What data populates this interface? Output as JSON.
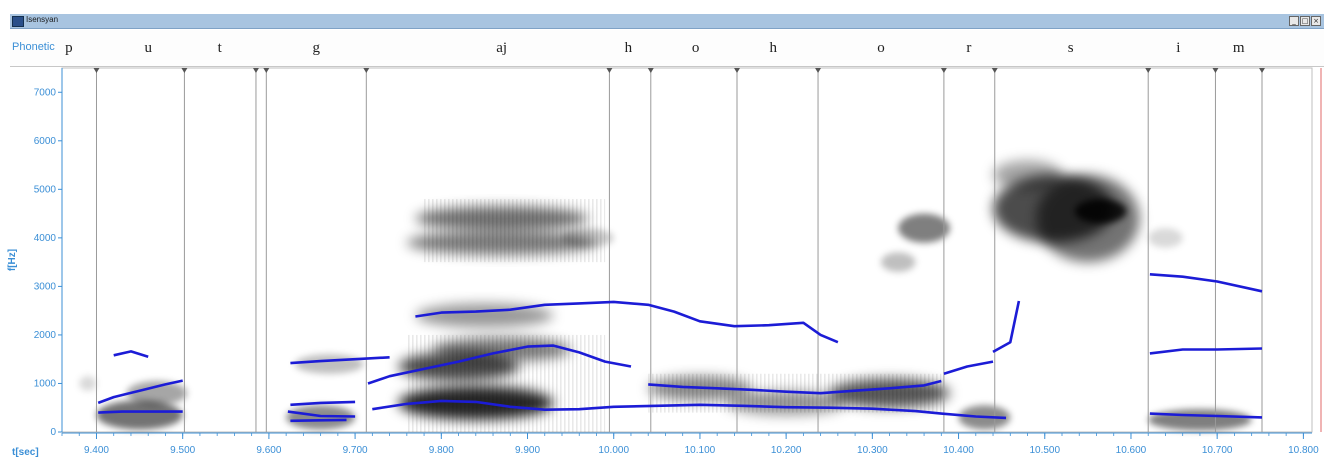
{
  "window": {
    "title": "Isensyan"
  },
  "tier": {
    "label": "Phonetic",
    "segments": [
      {
        "label": "p",
        "t": 9.368
      },
      {
        "label": "u",
        "t": 9.46
      },
      {
        "label": "t",
        "t": 9.543
      },
      {
        "label": "g",
        "t": 9.655
      },
      {
        "label": "aj",
        "t": 9.87
      },
      {
        "label": "h",
        "t": 10.017
      },
      {
        "label": "o",
        "t": 10.095
      },
      {
        "label": "h",
        "t": 10.185
      },
      {
        "label": "o",
        "t": 10.31
      },
      {
        "label": "r",
        "t": 10.412
      },
      {
        "label": "s",
        "t": 10.53
      },
      {
        "label": "i",
        "t": 10.655
      },
      {
        "label": "m",
        "t": 10.725
      }
    ],
    "boundaries": [
      9.4,
      9.502,
      9.585,
      9.597,
      9.713,
      9.995,
      10.043,
      10.143,
      10.237,
      10.383,
      10.442,
      10.62,
      10.698,
      10.752
    ]
  },
  "axes": {
    "y_label": "f[Hz]",
    "x_label": "t[sec]",
    "y_ticks": [
      "0",
      "1000",
      "2000",
      "3000",
      "4000",
      "5000",
      "6000",
      "7000"
    ],
    "x_ticks": [
      "9.400",
      "9.500",
      "9.600",
      "9.700",
      "9.800",
      "9.900",
      "10.000",
      "10.100",
      "10.200",
      "10.300",
      "10.400",
      "10.500",
      "10.600",
      "10.700",
      "10.800"
    ]
  },
  "colors": {
    "axis_text": "#3b8fd6",
    "formant": "#1c1cd6",
    "boundary": "#9a9a9a"
  },
  "chart_data": {
    "type": "spectrogram",
    "xlim": [
      9.36,
      10.81
    ],
    "ylim": [
      0,
      7500
    ],
    "formants": [
      {
        "name": "F1",
        "segments": [
          [
            [
              9.402,
              400
            ],
            [
              9.43,
              420
            ],
            [
              9.46,
              420
            ],
            [
              9.5,
              420
            ]
          ],
          [
            [
              9.625,
              230
            ],
            [
              9.65,
              240
            ],
            [
              9.69,
              250
            ]
          ],
          [
            [
              9.72,
              470
            ],
            [
              9.76,
              580
            ],
            [
              9.8,
              640
            ],
            [
              9.84,
              620
            ],
            [
              9.88,
              520
            ],
            [
              9.92,
              460
            ],
            [
              9.96,
              470
            ],
            [
              10.0,
              520
            ],
            [
              10.05,
              540
            ],
            [
              10.1,
              560
            ],
            [
              10.15,
              540
            ],
            [
              10.2,
              510
            ],
            [
              10.25,
              500
            ],
            [
              10.3,
              480
            ],
            [
              10.35,
              430
            ],
            [
              10.38,
              380
            ],
            [
              10.42,
              320
            ],
            [
              10.455,
              290
            ]
          ],
          [
            [
              9.622,
              420
            ],
            [
              9.66,
              330
            ],
            [
              9.7,
              320
            ]
          ],
          [
            [
              10.622,
              380
            ],
            [
              10.66,
              350
            ],
            [
              10.7,
              330
            ],
            [
              10.752,
              300
            ]
          ]
        ]
      },
      {
        "name": "F2",
        "segments": [
          [
            [
              9.402,
              600
            ],
            [
              9.42,
              720
            ],
            [
              9.45,
              850
            ],
            [
              9.48,
              980
            ],
            [
              9.5,
              1060
            ]
          ],
          [
            [
              9.625,
              560
            ],
            [
              9.66,
              600
            ],
            [
              9.7,
              620
            ]
          ],
          [
            [
              9.715,
              1000
            ],
            [
              9.74,
              1150
            ],
            [
              9.78,
              1300
            ],
            [
              9.82,
              1450
            ],
            [
              9.86,
              1620
            ],
            [
              9.9,
              1760
            ],
            [
              9.93,
              1780
            ],
            [
              9.96,
              1640
            ],
            [
              9.99,
              1450
            ],
            [
              10.02,
              1350
            ]
          ],
          [
            [
              10.04,
              980
            ],
            [
              10.08,
              930
            ],
            [
              10.12,
              900
            ],
            [
              10.16,
              870
            ],
            [
              10.2,
              830
            ],
            [
              10.24,
              800
            ],
            [
              10.28,
              850
            ],
            [
              10.32,
              900
            ],
            [
              10.36,
              960
            ],
            [
              10.38,
              1050
            ]
          ],
          [
            [
              10.383,
              1200
            ],
            [
              10.41,
              1350
            ],
            [
              10.44,
              1450
            ]
          ],
          [
            [
              10.622,
              1620
            ],
            [
              10.66,
              1700
            ],
            [
              10.7,
              1700
            ],
            [
              10.752,
              1720
            ]
          ]
        ]
      },
      {
        "name": "F3",
        "segments": [
          [
            [
              9.42,
              1580
            ],
            [
              9.44,
              1660
            ],
            [
              9.46,
              1550
            ]
          ],
          [
            [
              9.625,
              1420
            ],
            [
              9.66,
              1460
            ],
            [
              9.7,
              1500
            ],
            [
              9.74,
              1540
            ]
          ],
          [
            [
              9.77,
              2380
            ],
            [
              9.8,
              2460
            ],
            [
              9.84,
              2480
            ],
            [
              9.88,
              2520
            ],
            [
              9.92,
              2620
            ],
            [
              9.96,
              2650
            ],
            [
              10.0,
              2680
            ],
            [
              10.04,
              2620
            ],
            [
              10.07,
              2480
            ],
            [
              10.1,
              2280
            ],
            [
              10.14,
              2180
            ],
            [
              10.18,
              2200
            ],
            [
              10.22,
              2250
            ],
            [
              10.24,
              2000
            ],
            [
              10.26,
              1850
            ]
          ],
          [
            [
              10.44,
              1650
            ],
            [
              10.46,
              1850
            ],
            [
              10.47,
              2700
            ]
          ],
          [
            [
              10.622,
              3250
            ],
            [
              10.66,
              3200
            ],
            [
              10.7,
              3100
            ],
            [
              10.752,
              2900
            ]
          ]
        ]
      }
    ]
  }
}
